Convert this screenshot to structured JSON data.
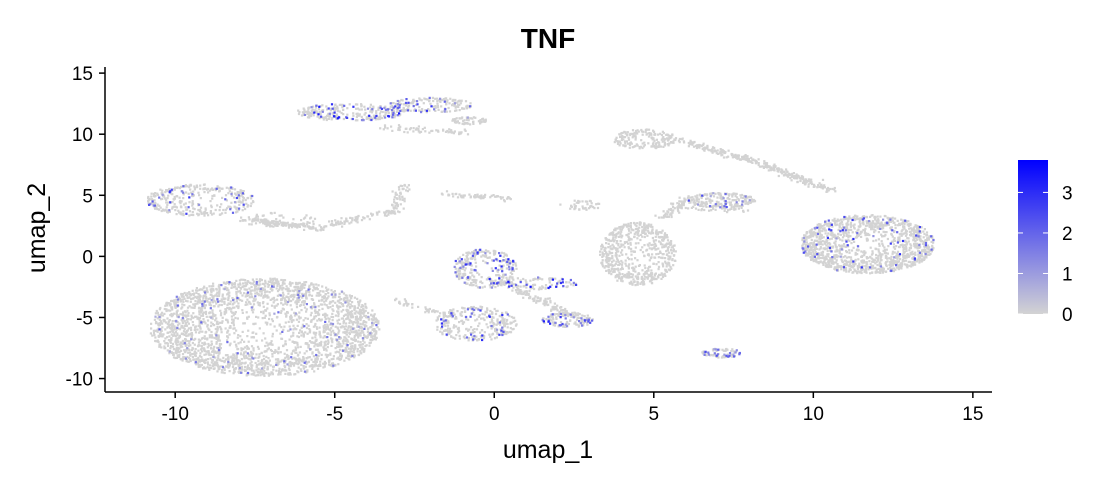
{
  "chart_data": {
    "type": "scatter",
    "title": "TNF",
    "xlabel": "umap_1",
    "ylabel": "umap_2",
    "xlim": [
      -12.2,
      15.6
    ],
    "ylim": [
      -11.1,
      15.5
    ],
    "x_ticks": [
      -10,
      -5,
      0,
      5,
      10,
      15
    ],
    "y_ticks": [
      -10,
      -5,
      0,
      5,
      10,
      15
    ],
    "x_tick_labels": [
      "-10",
      "-5",
      "0",
      "5",
      "10",
      "15"
    ],
    "y_tick_labels": [
      "-10",
      "-5",
      "0",
      "5",
      "10",
      "15"
    ],
    "grid": false,
    "legend": {
      "position": "right",
      "type": "continuous",
      "min": 0,
      "max": 3.8,
      "breaks": [
        0,
        1,
        2,
        3
      ],
      "break_labels": [
        "0",
        "1",
        "2",
        "3"
      ],
      "low_color": "#d3d3d3",
      "high_color": "#0000ff"
    },
    "clusters": [
      {
        "cx": -7.2,
        "cy": -5.8,
        "rx": 3.6,
        "ry": 4.0,
        "n": 2600,
        "expr_rate": 0.03,
        "expr_max": 2.0
      },
      {
        "cx": -9.2,
        "cy": 4.6,
        "rx": 1.7,
        "ry": 1.3,
        "n": 340,
        "expr_rate": 0.08,
        "expr_max": 2.8
      },
      {
        "cx": -6.8,
        "cy": 3.0,
        "rx": 1.2,
        "ry": 0.6,
        "n": 60,
        "expr_rate": 0.02,
        "expr_max": 1.5
      },
      {
        "cx": -4.5,
        "cy": 11.8,
        "rx": 1.7,
        "ry": 0.7,
        "n": 260,
        "expr_rate": 0.18,
        "expr_max": 3.5
      },
      {
        "cx": -2.0,
        "cy": 12.4,
        "rx": 1.3,
        "ry": 0.6,
        "n": 160,
        "expr_rate": 0.12,
        "expr_max": 3.0
      },
      {
        "cx": -0.8,
        "cy": 11.1,
        "rx": 0.6,
        "ry": 0.3,
        "n": 60,
        "expr_rate": 0.02,
        "expr_max": 1.0
      },
      {
        "cx": -0.3,
        "cy": -1.0,
        "rx": 1.0,
        "ry": 1.6,
        "n": 300,
        "expr_rate": 0.15,
        "expr_max": 3.2
      },
      {
        "cx": 1.4,
        "cy": -2.2,
        "rx": 1.2,
        "ry": 0.5,
        "n": 100,
        "expr_rate": 0.25,
        "expr_max": 3.6
      },
      {
        "cx": -0.6,
        "cy": -5.5,
        "rx": 1.3,
        "ry": 1.4,
        "n": 300,
        "expr_rate": 0.1,
        "expr_max": 3.0
      },
      {
        "cx": 2.3,
        "cy": -5.2,
        "rx": 0.8,
        "ry": 0.6,
        "n": 120,
        "expr_rate": 0.2,
        "expr_max": 3.3
      },
      {
        "cx": 4.5,
        "cy": 0.2,
        "rx": 1.2,
        "ry": 2.6,
        "n": 600,
        "expr_rate": 0.0,
        "expr_max": 0.0
      },
      {
        "cx": 2.7,
        "cy": 4.2,
        "rx": 0.7,
        "ry": 0.4,
        "n": 40,
        "expr_rate": 0.0,
        "expr_max": 0.0
      },
      {
        "cx": 4.7,
        "cy": 9.6,
        "rx": 1.0,
        "ry": 0.8,
        "n": 180,
        "expr_rate": 0.0,
        "expr_max": 0.0
      },
      {
        "cx": 7.1,
        "cy": 4.6,
        "rx": 1.1,
        "ry": 0.6,
        "n": 200,
        "expr_rate": 0.08,
        "expr_max": 2.5
      },
      {
        "cx": 11.7,
        "cy": 1.0,
        "rx": 2.1,
        "ry": 2.4,
        "n": 1300,
        "expr_rate": 0.05,
        "expr_max": 3.0
      },
      {
        "cx": 7.1,
        "cy": -7.9,
        "rx": 0.6,
        "ry": 0.4,
        "n": 70,
        "expr_rate": 0.3,
        "expr_max": 2.5
      }
    ],
    "trails": [
      {
        "x0": -7.6,
        "y0": 3.0,
        "x1": -5.5,
        "y1": 2.3,
        "n": 120
      },
      {
        "x0": -5.5,
        "y0": 2.4,
        "x1": -3.2,
        "y1": 3.7,
        "n": 80
      },
      {
        "x0": -3.2,
        "y0": 3.6,
        "x1": -2.8,
        "y1": 5.8,
        "n": 60
      },
      {
        "x0": -1.5,
        "y0": 5.0,
        "x1": 0.5,
        "y1": 4.8,
        "n": 60
      },
      {
        "x0": -3.5,
        "y0": 10.5,
        "x1": -1.0,
        "y1": 10.2,
        "n": 60
      },
      {
        "x0": 5.8,
        "y0": 9.5,
        "x1": 8.5,
        "y1": 7.5,
        "n": 150
      },
      {
        "x0": 8.5,
        "y0": 7.4,
        "x1": 10.6,
        "y1": 5.4,
        "n": 150
      },
      {
        "x0": 5.3,
        "y0": 3.2,
        "x1": 6.1,
        "y1": 4.8,
        "n": 60
      },
      {
        "x0": -3.2,
        "y0": -3.6,
        "x1": -1.4,
        "y1": -4.8,
        "n": 40
      },
      {
        "x0": 0.6,
        "y0": -2.5,
        "x1": 2.6,
        "y1": -5.1,
        "n": 120
      },
      {
        "x0": 5.7,
        "y0": 4.1,
        "x1": 7.9,
        "y1": 3.8,
        "n": 40
      }
    ]
  }
}
